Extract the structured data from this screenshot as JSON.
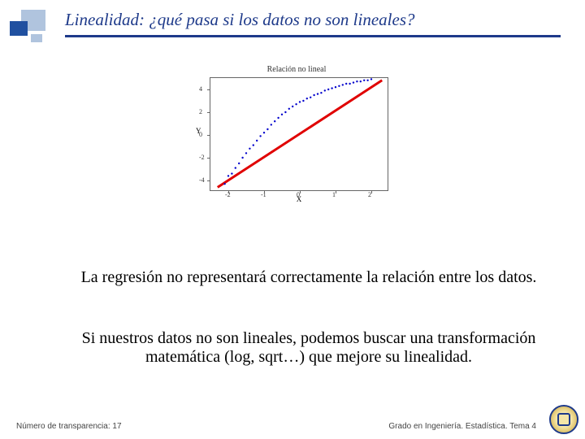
{
  "title": "Linealidad: ¿qué pasa si los datos no son lineales?",
  "chart": {
    "title": "Relación no lineal",
    "xlabel": "X",
    "ylabel": "Y",
    "xlim": [
      -2.5,
      2.5
    ],
    "ylim": [
      -5,
      5
    ],
    "xticks": [
      -2,
      -1,
      0,
      1,
      2
    ],
    "yticks": [
      -4,
      -2,
      0,
      2,
      4
    ],
    "tick_fontsize": 8,
    "label_fontsize": 9,
    "title_fontsize": 10,
    "border_color": "#666666",
    "line_color": "#e00000",
    "line_width": 3,
    "point_color": "#0000cc",
    "point_radius": 1.2,
    "line": {
      "x1": -2.3,
      "y1": -4.6,
      "x2": 2.3,
      "y2": 4.8
    },
    "points": [
      [
        -2.1,
        -4.3
      ],
      [
        -2.0,
        -3.6
      ],
      [
        -1.9,
        -3.4
      ],
      [
        -1.8,
        -2.9
      ],
      [
        -1.7,
        -2.5
      ],
      [
        -1.6,
        -2.0
      ],
      [
        -1.5,
        -1.6
      ],
      [
        -1.4,
        -1.2
      ],
      [
        -1.3,
        -0.9
      ],
      [
        -1.2,
        -0.5
      ],
      [
        -1.1,
        -0.1
      ],
      [
        -1.0,
        0.2
      ],
      [
        -0.9,
        0.5
      ],
      [
        -0.8,
        0.9
      ],
      [
        -0.7,
        1.2
      ],
      [
        -0.6,
        1.5
      ],
      [
        -0.5,
        1.8
      ],
      [
        -0.4,
        2.0
      ],
      [
        -0.3,
        2.3
      ],
      [
        -0.2,
        2.5
      ],
      [
        -0.1,
        2.7
      ],
      [
        0.0,
        2.9
      ],
      [
        0.1,
        3.0
      ],
      [
        0.2,
        3.2
      ],
      [
        0.3,
        3.3
      ],
      [
        0.4,
        3.5
      ],
      [
        0.5,
        3.6
      ],
      [
        0.6,
        3.7
      ],
      [
        0.7,
        3.9
      ],
      [
        0.8,
        4.0
      ],
      [
        0.9,
        4.1
      ],
      [
        1.0,
        4.2
      ],
      [
        1.1,
        4.3
      ],
      [
        1.2,
        4.4
      ],
      [
        1.3,
        4.5
      ],
      [
        1.4,
        4.5
      ],
      [
        1.5,
        4.6
      ],
      [
        1.6,
        4.7
      ],
      [
        1.7,
        4.7
      ],
      [
        1.8,
        4.8
      ],
      [
        1.9,
        4.8
      ],
      [
        2.0,
        4.9
      ]
    ]
  },
  "body1": "La regresión no representará correctamente la relación entre los datos.",
  "body2": "Si nuestros datos no son lineales, podemos buscar una transformación matemática (log, sqrt…) que mejore su linealidad.",
  "footer_left": "Número de transparencia: 17",
  "footer_right": "Grado en Ingeniería. Estadística. Tema 4",
  "colors": {
    "title": "#1e3a8a",
    "rule": "#1e3a8a",
    "corner_light": "#b0c4de",
    "corner_dark": "#2050a0",
    "background": "#ffffff"
  }
}
